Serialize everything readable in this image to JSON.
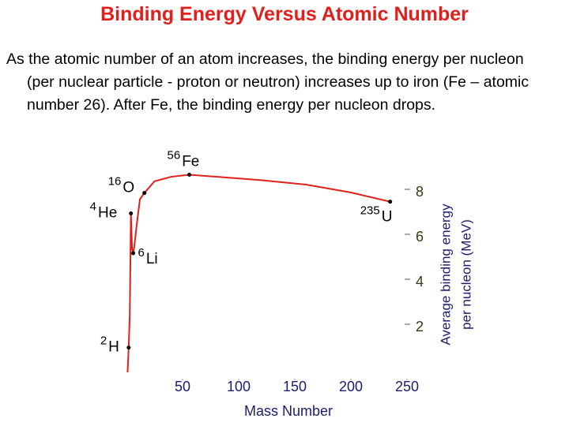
{
  "slide": {
    "title": "Binding Energy Versus Atomic Number",
    "text": "As the atomic number of an atom increases, the binding energy per nucleon (per nuclear particle - proton or neutron) increases up to iron (Fe – atomic number 26). After Fe, the binding energy per nucleon drops."
  },
  "chart_data": {
    "type": "line",
    "x_label": "Mass Number",
    "y_label": [
      "Average binding energy",
      "per nucleon (MeV)"
    ],
    "x": [
      1,
      2,
      3,
      4,
      5,
      6,
      7,
      9,
      12,
      16,
      25,
      40,
      56,
      80,
      120,
      160,
      200,
      235
    ],
    "series": [
      {
        "color": "#e0201c",
        "values": [
          0,
          1.1,
          2.6,
          7.07,
          5.5,
          5.3,
          5.6,
          6.5,
          7.7,
          7.98,
          8.5,
          8.7,
          8.79,
          8.7,
          8.55,
          8.35,
          8.0,
          7.59
        ]
      }
    ],
    "points": [
      {
        "x": 2,
        "y": 1.1,
        "symbol": "H"
      },
      {
        "x": 4,
        "y": 7.07,
        "symbol": "He"
      },
      {
        "x": 6,
        "y": 5.3,
        "symbol": "Li"
      },
      {
        "x": 16,
        "y": 7.98,
        "symbol": "O"
      },
      {
        "x": 56,
        "y": 8.79,
        "symbol": "Fe"
      },
      {
        "x": 235,
        "y": 7.59,
        "symbol": "U"
      }
    ],
    "xlim": [
      0,
      250
    ],
    "xticks": [
      50,
      100,
      150,
      200,
      250
    ],
    "ylim": [
      0,
      9
    ],
    "yticks": [
      2,
      4,
      6,
      8
    ]
  }
}
